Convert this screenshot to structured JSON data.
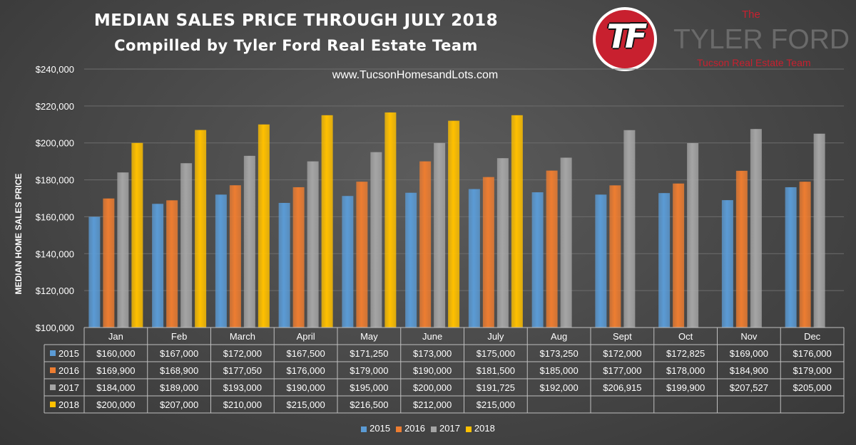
{
  "header": {
    "title": "MEDIAN SALES PRICE THROUGH JULY 2018",
    "subtitle": "Compilled by Tyler Ford Real Estate Team",
    "website": "www.TucsonHomesandLots.com"
  },
  "logo": {
    "monogram": "TF",
    "the": "The",
    "name": "TYLER FORD",
    "tagline": "Tucson Real Estate Team"
  },
  "chart_data": {
    "type": "bar",
    "ylabel": "MEDIAN HOME SALES PRICE",
    "ylim": [
      100000,
      240000
    ],
    "yticks": [
      100000,
      120000,
      140000,
      160000,
      180000,
      200000,
      220000,
      240000
    ],
    "ytick_labels": [
      "$100,000",
      "$120,000",
      "$140,000",
      "$160,000",
      "$180,000",
      "$200,000",
      "$220,000",
      "$240,000"
    ],
    "grid": true,
    "legend_position": "bottom",
    "categories": [
      "Jan",
      "Feb",
      "March",
      "April",
      "May",
      "June",
      "July",
      "Aug",
      "Sept",
      "Oct",
      "Nov",
      "Dec"
    ],
    "series": [
      {
        "name": "2015",
        "color": "#5b9bd5",
        "values": [
          160000,
          167000,
          172000,
          167500,
          171250,
          173000,
          175000,
          173250,
          172000,
          172825,
          169000,
          176000
        ],
        "labels": [
          "$160,000",
          "$167,000",
          "$172,000",
          "$167,500",
          "$171,250",
          "$173,000",
          "$175,000",
          "$173,250",
          "$172,000",
          "$172,825",
          "$169,000",
          "$176,000"
        ]
      },
      {
        "name": "2016",
        "color": "#ed7d31",
        "values": [
          169900,
          168900,
          177050,
          176000,
          179000,
          190000,
          181500,
          185000,
          177000,
          178000,
          184900,
          179000
        ],
        "labels": [
          "$169,900",
          "$168,900",
          "$177,050",
          "$176,000",
          "$179,000",
          "$190,000",
          "$181,500",
          "$185,000",
          "$177,000",
          "$178,000",
          "$184,900",
          "$179,000"
        ]
      },
      {
        "name": "2017",
        "color": "#a5a5a5",
        "values": [
          184000,
          189000,
          193000,
          190000,
          195000,
          200000,
          191725,
          192000,
          206915,
          199900,
          207527,
          205000
        ],
        "labels": [
          "$184,000",
          "$189,000",
          "$193,000",
          "$190,000",
          "$195,000",
          "$200,000",
          "$191,725",
          "$192,000",
          "$206,915",
          "$199,900",
          "$207,527",
          "$205,000"
        ]
      },
      {
        "name": "2018",
        "color": "#ffc000",
        "values": [
          200000,
          207000,
          210000,
          215000,
          216500,
          212000,
          215000,
          null,
          null,
          null,
          null,
          null
        ],
        "labels": [
          "$200,000",
          "$207,000",
          "$210,000",
          "$215,000",
          "$216,500",
          "$212,000",
          "$215,000",
          "",
          "",
          "",
          "",
          ""
        ]
      }
    ]
  }
}
